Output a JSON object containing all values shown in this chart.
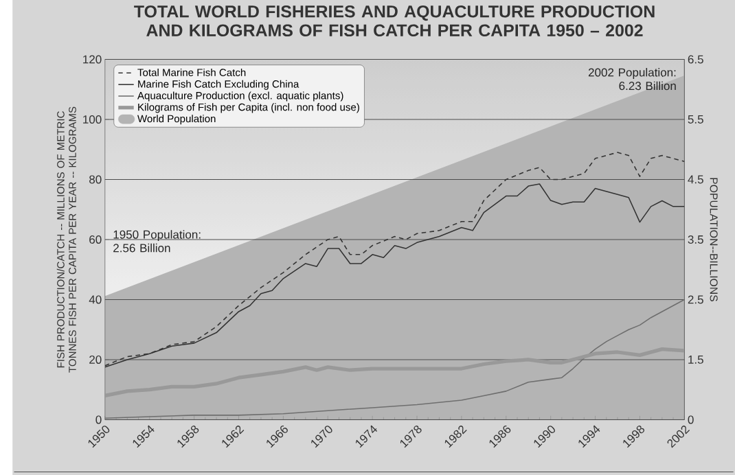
{
  "chart_data": {
    "type": "line",
    "title": "TOTAL WORLD FISHERIES AND AQUACULTURE PRODUCTION AND KILOGRAMS OF FISH CATCH PER CAPITA 1950 – 2002",
    "ylabel": "FISH PRODUCTION/CATCH -- MILLIONS OF METRIC TONNES FISH PER CAPITA PER YEAR -- KILOGRAMS",
    "y2label": "POPULATION--BILLIONS",
    "annotations": [
      "1950 Population: 2.56 Billion",
      "2002 Population: 6.23 Billion"
    ],
    "xlim": [
      1950,
      2002
    ],
    "xticks": [
      1950,
      1954,
      1958,
      1962,
      1966,
      1970,
      1974,
      1978,
      1982,
      1986,
      1990,
      1994,
      1998,
      2002
    ],
    "ylim": [
      0,
      120
    ],
    "yticks": [
      0,
      20,
      40,
      60,
      80,
      100,
      120
    ],
    "y2lim": [
      0.5,
      6.5
    ],
    "y2ticks": [
      {
        "value": 0.5,
        "label": "0"
      },
      1.5,
      2.5,
      3.5,
      4.5,
      5.5,
      6.5
    ],
    "grid": "y",
    "legend": "top left",
    "series": [
      {
        "name": "Total Marine Fish Catch",
        "color": "#333333",
        "line_style": "dashed",
        "x": [
          1950,
          1952,
          1954,
          1956,
          1958,
          1960,
          1962,
          1964,
          1966,
          1968,
          1970,
          1971,
          1972,
          1973,
          1974,
          1976,
          1977,
          1978,
          1980,
          1982,
          1983,
          1984,
          1986,
          1988,
          1989,
          1990,
          1991,
          1992,
          1993,
          1994,
          1995,
          1996,
          1997,
          1998,
          1999,
          2000,
          2001,
          2002
        ],
        "values": [
          18,
          21,
          22,
          25,
          26,
          31,
          38,
          44,
          49,
          55,
          60,
          61,
          55,
          55,
          58,
          61,
          60,
          62,
          63,
          66,
          66,
          73,
          80,
          83,
          84,
          80,
          80,
          81,
          82,
          87,
          88,
          89,
          88,
          81,
          87,
          88,
          87,
          86
        ]
      },
      {
        "name": "Marine Fish Catch Excluding China",
        "color": "#333333",
        "line_style": "solid",
        "x": [
          1950,
          1952,
          1954,
          1956,
          1958,
          1960,
          1962,
          1963,
          1964,
          1965,
          1966,
          1968,
          1969,
          1970,
          1971,
          1972,
          1973,
          1974,
          1975,
          1976,
          1977,
          1978,
          1980,
          1982,
          1983,
          1984,
          1986,
          1987,
          1988,
          1989,
          1990,
          1991,
          1992,
          1993,
          1994,
          1996,
          1997,
          1998,
          1999,
          2000,
          2001,
          2002
        ],
        "values": [
          17.5,
          20,
          22,
          24.5,
          25.5,
          29,
          36,
          38,
          42,
          43,
          47,
          52,
          51,
          57,
          57,
          52,
          52,
          55,
          54,
          58,
          57,
          59,
          61,
          64,
          63,
          69,
          74.5,
          74.5,
          77.8,
          78.5,
          73,
          71.7,
          72.5,
          72.5,
          77,
          75,
          74,
          65.8,
          71,
          72.9,
          71,
          71
        ]
      },
      {
        "name": "Aquaculture Production (excl. aquatic plants)",
        "color": "#6e6e6e",
        "line_style": "solid",
        "x": [
          1950,
          1954,
          1958,
          1962,
          1966,
          1970,
          1974,
          1978,
          1982,
          1984,
          1986,
          1988,
          1990,
          1991,
          1992,
          1993,
          1994,
          1995,
          1996,
          1997,
          1998,
          1999,
          2000,
          2001,
          2002
        ],
        "values": [
          0.5,
          1,
          1.5,
          1.5,
          2,
          3,
          4,
          5,
          6.5,
          8,
          9.5,
          12.5,
          13.5,
          14,
          17,
          20.5,
          23.5,
          26,
          28,
          30,
          31.5,
          34,
          36,
          38,
          40
        ]
      },
      {
        "name": "Kilograms of Fish per Capita (incl. non food use)",
        "color": "#999999",
        "line_style": "solid",
        "x": [
          1950,
          1952,
          1954,
          1956,
          1958,
          1960,
          1962,
          1964,
          1966,
          1968,
          1969,
          1970,
          1972,
          1974,
          1976,
          1978,
          1980,
          1982,
          1984,
          1986,
          1988,
          1990,
          1991,
          1992,
          1994,
          1996,
          1998,
          2000,
          2002
        ],
        "values": [
          8,
          9.5,
          10,
          11,
          11,
          12,
          14,
          15,
          16,
          17.5,
          16.5,
          17.5,
          16.5,
          17,
          17,
          17,
          17,
          17,
          18.5,
          19.5,
          20,
          19,
          19,
          20,
          22,
          22.5,
          21.5,
          23.5,
          23
        ]
      },
      {
        "name": "World Population",
        "type": "area",
        "axis": "y2",
        "color": "#b4b4b4",
        "x": [
          1950,
          2002
        ],
        "values": [
          2.56,
          6.23
        ]
      }
    ]
  }
}
